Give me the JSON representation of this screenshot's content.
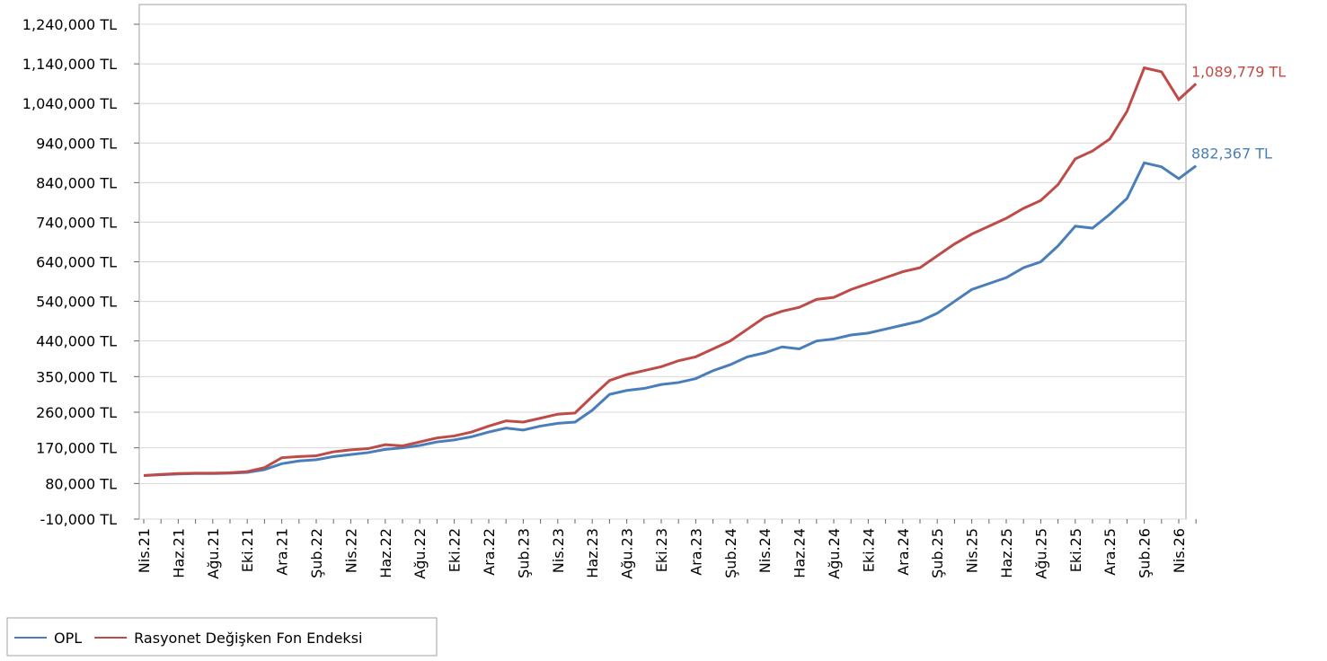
{
  "chart_data": {
    "type": "line",
    "categories": [
      "Nis.21",
      null,
      "Haz.21",
      null,
      "Ağu.21",
      null,
      "Eki.21",
      null,
      "Ara.21",
      null,
      "Şub.22",
      null,
      "Nis.22",
      null,
      "Haz.22",
      null,
      "Ağu.22",
      null,
      "Eki.22",
      null,
      "Ara.22",
      null,
      "Şub.23",
      null,
      "Nis.23",
      null,
      "Haz.23",
      null,
      "Ağu.23",
      null,
      "Eki.23",
      null,
      "Ara.23",
      null,
      "Şub.24",
      null,
      "Nis.24",
      null,
      "Haz.24",
      null,
      "Ağu.24",
      null,
      "Eki.24",
      null,
      "Ara.24",
      null,
      "Şub.25",
      null,
      "Nis.25",
      null,
      "Haz.25",
      null,
      "Ağu.25",
      null,
      "Eki.25",
      null,
      "Ara.25",
      null,
      "Şub.26",
      null,
      "Nis.26",
      null
    ],
    "series": [
      {
        "name": "OPL",
        "color": "#4a7ebb",
        "values": [
          100000,
          102000,
          104000,
          105000,
          105000,
          106000,
          108000,
          115000,
          130000,
          137000,
          140000,
          148000,
          153000,
          158000,
          166000,
          170000,
          176000,
          185000,
          190000,
          198000,
          210000,
          220000,
          215000,
          225000,
          232000,
          235000,
          265000,
          305000,
          315000,
          320000,
          330000,
          335000,
          345000,
          365000,
          380000,
          400000,
          410000,
          425000,
          420000,
          440000,
          445000,
          455000,
          460000,
          470000,
          480000,
          490000,
          510000,
          540000,
          570000,
          585000,
          600000,
          625000,
          640000,
          680000,
          730000,
          725000,
          760000,
          800000,
          890000,
          880000,
          850000,
          882367
        ],
        "value_labels": [
          null,
          null,
          null,
          null,
          null,
          null,
          null,
          null,
          null,
          null,
          null,
          null,
          null,
          null,
          null,
          null,
          null,
          null,
          null,
          null,
          null,
          null,
          null,
          null,
          null,
          null,
          null,
          null,
          null,
          null,
          null,
          null,
          null,
          null,
          null,
          null,
          null,
          null,
          null,
          null,
          null,
          null,
          null,
          null,
          null,
          null,
          null,
          null,
          null,
          null,
          null,
          null,
          null,
          null,
          null,
          null,
          null,
          null,
          null,
          null,
          null,
          "882,367 TL"
        ]
      },
      {
        "name": "Rasyonet Değişken Fon Endeksi",
        "color": "#be4b48",
        "values": [
          100000,
          103000,
          105000,
          106000,
          106000,
          107000,
          110000,
          120000,
          145000,
          148000,
          150000,
          160000,
          165000,
          168000,
          178000,
          175000,
          185000,
          195000,
          200000,
          210000,
          225000,
          238000,
          235000,
          245000,
          255000,
          258000,
          300000,
          340000,
          355000,
          365000,
          375000,
          390000,
          400000,
          420000,
          440000,
          470000,
          500000,
          515000,
          525000,
          545000,
          550000,
          570000,
          585000,
          600000,
          615000,
          625000,
          655000,
          685000,
          710000,
          730000,
          750000,
          775000,
          795000,
          835000,
          900000,
          920000,
          950000,
          1020000,
          1130000,
          1120000,
          1050000,
          1089779
        ],
        "value_labels": [
          null,
          null,
          null,
          null,
          null,
          null,
          null,
          null,
          null,
          null,
          null,
          null,
          null,
          null,
          null,
          null,
          null,
          null,
          null,
          null,
          null,
          null,
          null,
          null,
          null,
          null,
          null,
          null,
          null,
          null,
          null,
          null,
          null,
          null,
          null,
          null,
          null,
          null,
          null,
          null,
          null,
          null,
          null,
          null,
          null,
          null,
          null,
          null,
          null,
          null,
          null,
          null,
          null,
          null,
          null,
          null,
          null,
          null,
          null,
          null,
          null,
          "1,089,779 TL"
        ]
      }
    ],
    "ylim": [
      -10000,
      1290000
    ],
    "yticks": [
      {
        "value": -10000,
        "label": "-10,000 TL"
      },
      {
        "value": 80000,
        "label": "80,000 TL"
      },
      {
        "value": 170000,
        "label": "170,000 TL"
      },
      {
        "value": 260000,
        "label": "260,000 TL"
      },
      {
        "value": 350000,
        "label": "350,000 TL"
      },
      {
        "value": 440000,
        "label": "440,000 TL"
      },
      {
        "value": 540000,
        "label": "540,000 TL"
      },
      {
        "value": 640000,
        "label": "640,000 TL"
      },
      {
        "value": 740000,
        "label": "740,000 TL"
      },
      {
        "value": 840000,
        "label": "840,000 TL"
      },
      {
        "value": 940000,
        "label": "940,000 TL"
      },
      {
        "value": 1040000,
        "label": "1,040,000 TL"
      },
      {
        "value": 1140000,
        "label": "1,140,000 TL"
      },
      {
        "value": 1240000,
        "label": "1,240,000 TL"
      }
    ],
    "grid": true,
    "legend": "bottom-left"
  }
}
